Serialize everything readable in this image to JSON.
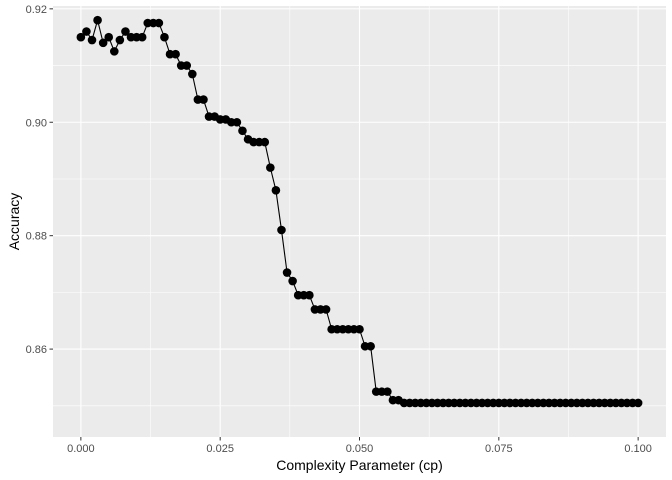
{
  "chart_data": {
    "type": "line",
    "xlabel": "Complexity Parameter (cp)",
    "ylabel": "Accuracy",
    "xlim": [
      -0.005,
      0.105
    ],
    "ylim": [
      0.8445,
      0.9205
    ],
    "x_ticks": [
      0.0,
      0.025,
      0.05,
      0.075,
      0.1
    ],
    "x_tick_labels": [
      "0.000",
      "0.025",
      "0.050",
      "0.075",
      "0.100"
    ],
    "y_ticks": [
      0.86,
      0.88,
      0.9,
      0.92
    ],
    "y_tick_labels": [
      "0.86",
      "0.88",
      "0.90",
      "0.92"
    ],
    "grid": true,
    "colors": {
      "panel": "#ebebeb",
      "grid": "#ffffff",
      "series": "#000000"
    },
    "series": [
      {
        "x": [
          0.0,
          0.001,
          0.002,
          0.003,
          0.004,
          0.005,
          0.006,
          0.007,
          0.008,
          0.009,
          0.01,
          0.011,
          0.012,
          0.013,
          0.014,
          0.015,
          0.016,
          0.017,
          0.018,
          0.019,
          0.02,
          0.021,
          0.022,
          0.023,
          0.024,
          0.025,
          0.026,
          0.027,
          0.028,
          0.029,
          0.03,
          0.031,
          0.032,
          0.033,
          0.034,
          0.035,
          0.036,
          0.037,
          0.038,
          0.039,
          0.04,
          0.041,
          0.042,
          0.043,
          0.044,
          0.045,
          0.046,
          0.047,
          0.048,
          0.049,
          0.05,
          0.051,
          0.052,
          0.053,
          0.054,
          0.055,
          0.056,
          0.057,
          0.058,
          0.059,
          0.06,
          0.061,
          0.062,
          0.063,
          0.064,
          0.065,
          0.066,
          0.067,
          0.068,
          0.069,
          0.07,
          0.071,
          0.072,
          0.073,
          0.074,
          0.075,
          0.076,
          0.077,
          0.078,
          0.079,
          0.08,
          0.081,
          0.082,
          0.083,
          0.084,
          0.085,
          0.086,
          0.087,
          0.088,
          0.089,
          0.09,
          0.091,
          0.092,
          0.093,
          0.094,
          0.095,
          0.096,
          0.097,
          0.098,
          0.099,
          0.1
        ],
        "y": [
          0.915,
          0.916,
          0.9145,
          0.918,
          0.914,
          0.915,
          0.9125,
          0.9145,
          0.916,
          0.915,
          0.915,
          0.915,
          0.9175,
          0.9175,
          0.9175,
          0.915,
          0.912,
          0.912,
          0.91,
          0.91,
          0.9085,
          0.904,
          0.904,
          0.901,
          0.901,
          0.9005,
          0.9005,
          0.9,
          0.9,
          0.8985,
          0.897,
          0.8965,
          0.8965,
          0.8965,
          0.892,
          0.888,
          0.881,
          0.8735,
          0.872,
          0.8695,
          0.8695,
          0.8695,
          0.867,
          0.867,
          0.867,
          0.8635,
          0.8635,
          0.8635,
          0.8635,
          0.8635,
          0.8635,
          0.8605,
          0.8605,
          0.8525,
          0.8525,
          0.8525,
          0.851,
          0.851,
          0.8505,
          0.8505,
          0.8505,
          0.8505,
          0.8505,
          0.8505,
          0.8505,
          0.8505,
          0.8505,
          0.8505,
          0.8505,
          0.8505,
          0.8505,
          0.8505,
          0.8505,
          0.8505,
          0.8505,
          0.8505,
          0.8505,
          0.8505,
          0.8505,
          0.8505,
          0.8505,
          0.8505,
          0.8505,
          0.8505,
          0.8505,
          0.8505,
          0.8505,
          0.8505,
          0.8505,
          0.8505,
          0.8505,
          0.8505,
          0.8505,
          0.8505,
          0.8505,
          0.8505,
          0.8505,
          0.8505,
          0.8505,
          0.8505,
          0.8505
        ]
      }
    ]
  }
}
